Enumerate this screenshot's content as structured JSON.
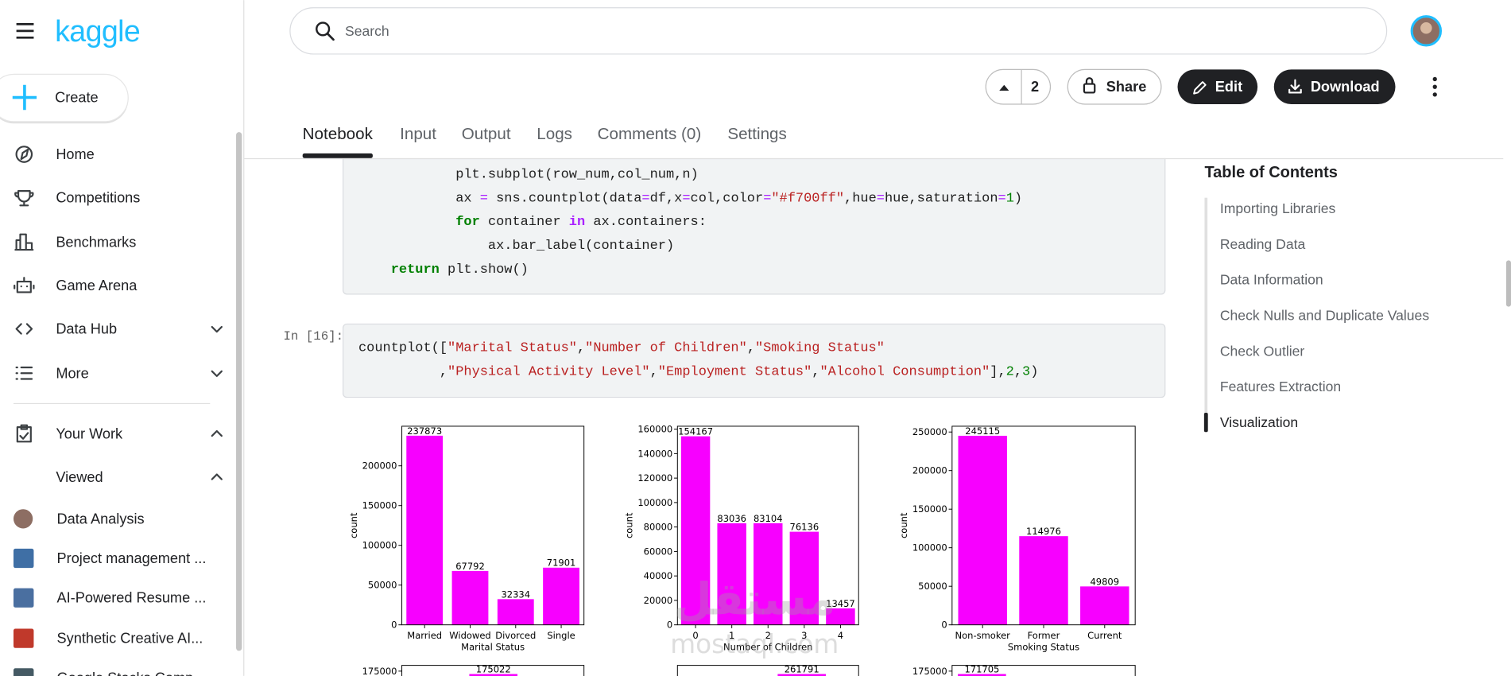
{
  "sidebar": {
    "logo": "kaggle",
    "create": "Create",
    "nav": [
      "Home",
      "Competitions",
      "Benchmarks",
      "Game Arena",
      "Data Hub",
      "More"
    ],
    "your_work": "Your Work",
    "viewed": "Viewed",
    "recent": [
      "Data Analysis",
      "Project management ...",
      "AI-Powered Resume ...",
      "Synthetic Creative AI...",
      "Google Stocks Comp..."
    ]
  },
  "header": {
    "search_placeholder": "Search",
    "votes": 2,
    "share": "Share",
    "edit": "Edit",
    "download": "Download"
  },
  "tabs": [
    "Notebook",
    "Input",
    "Output",
    "Logs",
    "Comments (0)",
    "Settings"
  ],
  "code_cells": [
    {
      "lines": [
        [
          {
            "t": "            plt.subplot(row_num,col_num,n)",
            "c": "#212121"
          }
        ],
        [
          {
            "t": "            ax ",
            "c": "#212121"
          },
          {
            "t": "=",
            "c": "#aa22ff"
          },
          {
            "t": " sns.countplot(data",
            "c": "#212121"
          },
          {
            "t": "=",
            "c": "#aa22ff"
          },
          {
            "t": "df,x",
            "c": "#212121"
          },
          {
            "t": "=",
            "c": "#aa22ff"
          },
          {
            "t": "col,color",
            "c": "#212121"
          },
          {
            "t": "=",
            "c": "#aa22ff"
          },
          {
            "t": "\"#f700ff\"",
            "c": "#ba2121"
          },
          {
            "t": ",hue",
            "c": "#212121"
          },
          {
            "t": "=",
            "c": "#aa22ff"
          },
          {
            "t": "hue,saturation",
            "c": "#212121"
          },
          {
            "t": "=",
            "c": "#aa22ff"
          },
          {
            "t": "1",
            "c": "#008000"
          },
          {
            "t": ")",
            "c": "#212121"
          }
        ],
        [
          {
            "t": "            ",
            "c": "#212121"
          },
          {
            "t": "for",
            "c": "#008000",
            "bold": true
          },
          {
            "t": " container ",
            "c": "#212121"
          },
          {
            "t": "in",
            "c": "#aa22ff",
            "bold": true
          },
          {
            "t": " ax.containers:",
            "c": "#212121"
          }
        ],
        [
          {
            "t": "                ax.bar_label(container)",
            "c": "#212121"
          }
        ],
        [
          {
            "t": "    ",
            "c": "#212121"
          },
          {
            "t": "return",
            "c": "#008000",
            "bold": true
          },
          {
            "t": " plt.show()",
            "c": "#212121"
          }
        ]
      ]
    },
    {
      "prompt": "In [16]:",
      "lines": [
        [
          {
            "t": "countplot([",
            "c": "#212121"
          },
          {
            "t": "\"Marital Status\"",
            "c": "#ba2121"
          },
          {
            "t": ",",
            "c": "#212121"
          },
          {
            "t": "\"Number of Children\"",
            "c": "#ba2121"
          },
          {
            "t": ",",
            "c": "#212121"
          },
          {
            "t": "\"Smoking Status\"",
            "c": "#ba2121"
          }
        ],
        [
          {
            "t": "          ,",
            "c": "#212121"
          },
          {
            "t": "\"Physical Activity Level\"",
            "c": "#ba2121"
          },
          {
            "t": ",",
            "c": "#212121"
          },
          {
            "t": "\"Employment Status\"",
            "c": "#ba2121"
          },
          {
            "t": ",",
            "c": "#212121"
          },
          {
            "t": "\"Alcohol Consumption\"",
            "c": "#ba2121"
          },
          {
            "t": "],",
            "c": "#212121"
          },
          {
            "t": "2",
            "c": "#008000"
          },
          {
            "t": ",",
            "c": "#212121"
          },
          {
            "t": "3",
            "c": "#008000"
          },
          {
            "t": ")",
            "c": "#212121"
          }
        ]
      ]
    }
  ],
  "toc": {
    "title": "Table of Contents",
    "items": [
      "Importing Libraries",
      "Reading Data",
      "Data Information",
      "Check Nulls and Duplicate Values",
      "Check Outlier",
      "Features Extraction",
      "Visualization"
    ],
    "active": 6
  },
  "chart_data": [
    {
      "type": "bar",
      "x_label": "Marital Status",
      "y_label": "count",
      "color": "#f700ff",
      "categories": [
        "Married",
        "Widowed",
        "Divorced",
        "Single"
      ],
      "values": [
        237873,
        67792,
        32334,
        71901
      ],
      "ylim": [
        0,
        249800
      ],
      "yticks": [
        0,
        50000,
        100000,
        150000,
        200000
      ]
    },
    {
      "type": "bar",
      "x_label": "Number of Children",
      "y_label": "count",
      "color": "#f700ff",
      "categories": [
        "0",
        "1",
        "2",
        "3",
        "4"
      ],
      "values": [
        154167,
        83036,
        83104,
        76136,
        13457
      ],
      "ylim": [
        0,
        162400
      ],
      "yticks": [
        0,
        20000,
        40000,
        60000,
        80000,
        100000,
        120000,
        140000,
        160000
      ]
    },
    {
      "type": "bar",
      "x_label": "Smoking Status",
      "y_label": "count",
      "color": "#f700ff",
      "categories": [
        "Non-smoker",
        "Former",
        "Current"
      ],
      "values": [
        245115,
        114976,
        49809
      ],
      "ylim": [
        0,
        257500
      ],
      "yticks": [
        0,
        50000,
        100000,
        150000,
        200000,
        250000
      ]
    }
  ],
  "lower_charts": [
    {
      "ytick": 175000,
      "value": 175022
    },
    {
      "value": 261791
    },
    {
      "ytick": 175000,
      "value": 171705
    }
  ],
  "watermark": [
    "مستقل",
    "mostaql.com"
  ]
}
